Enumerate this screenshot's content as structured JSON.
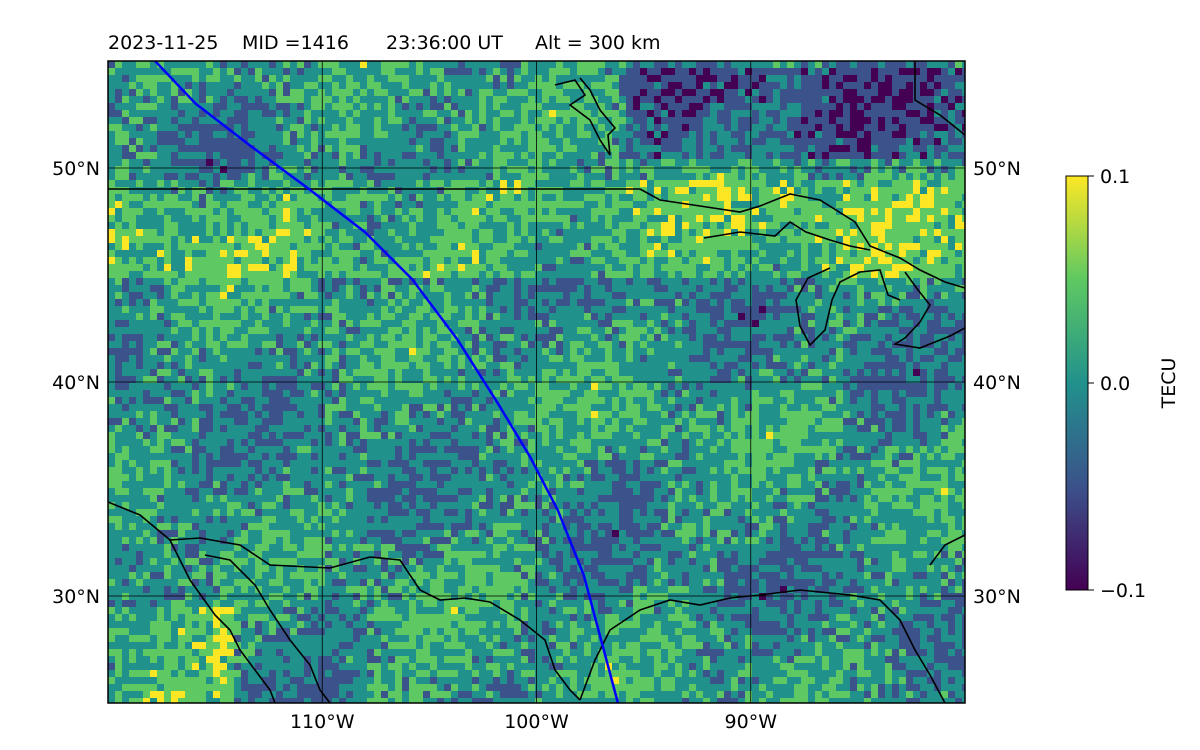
{
  "title": {
    "date": "2023-11-25",
    "mid": "MID =1416",
    "time": "23:36:00  UT",
    "alt": "Alt = 300 km"
  },
  "map": {
    "lon_range": [
      -120,
      -80
    ],
    "lat_range": [
      25,
      55
    ],
    "x_ticks": [
      {
        "lon": -110,
        "label": "110°W"
      },
      {
        "lon": -100,
        "label": "100°W"
      },
      {
        "lon": -90,
        "label": "90°W"
      }
    ],
    "y_ticks": [
      {
        "lat": 30,
        "label": "30°N"
      },
      {
        "lat": 40,
        "label": "40°N"
      },
      {
        "lat": 50,
        "label": "50°N"
      }
    ],
    "grid": true,
    "track_color": "#0000ff",
    "track": [
      [
        -117.8,
        55
      ],
      [
        -115.9,
        53
      ],
      [
        -113.3,
        51
      ],
      [
        -110.6,
        49
      ],
      [
        -108.0,
        47
      ],
      [
        -105.8,
        44.8
      ],
      [
        -103.7,
        42
      ],
      [
        -101.8,
        39
      ],
      [
        -100.3,
        36.5
      ],
      [
        -99.0,
        34
      ],
      [
        -97.8,
        31
      ],
      [
        -97.0,
        28
      ],
      [
        -96.2,
        25
      ]
    ]
  },
  "colorbar": {
    "label": "TECU",
    "min": -0.1,
    "max": 0.1,
    "ticks": [
      {
        "value": 0.1,
        "label": "0.1"
      },
      {
        "value": 0.0,
        "label": "0.0"
      },
      {
        "value": -0.1,
        "label": "−0.1"
      }
    ],
    "colormap": "viridis",
    "colors": [
      "#440154",
      "#3b528b",
      "#21918c",
      "#5ec962",
      "#fde725"
    ]
  },
  "chart_data": {
    "type": "heatmap",
    "colormap": "viridis",
    "x_range": [
      -120,
      -80
    ],
    "y_range": [
      25,
      55
    ],
    "value_range": [
      -0.1,
      0.1
    ],
    "value_label": "TECU"
  }
}
